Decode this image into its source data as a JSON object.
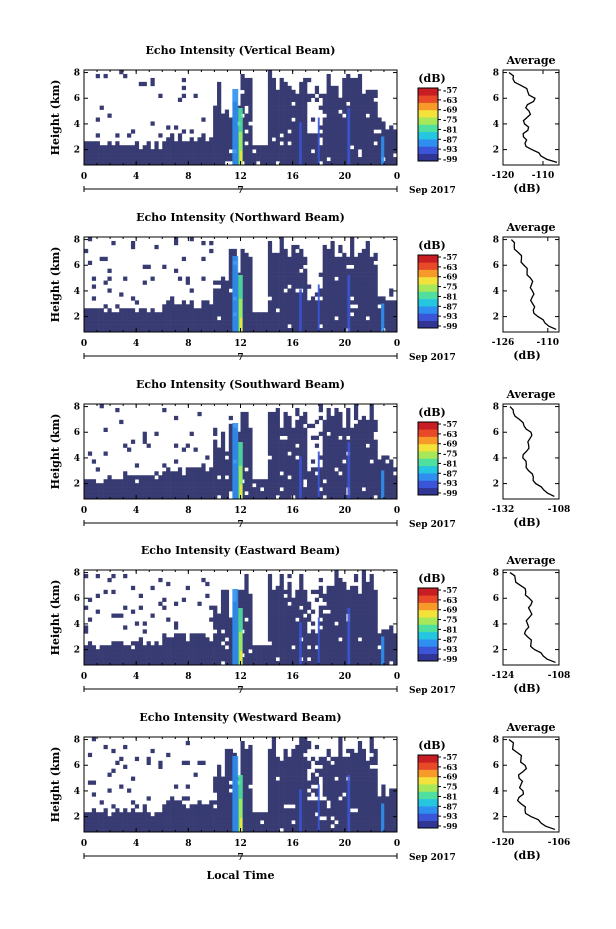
{
  "figure": {
    "xlabel": "Local Time",
    "date_label": "Sep 2017",
    "day_label": "7",
    "colorbar_unit": "(dB)",
    "colorbar_ticks": [
      "-57",
      "-63",
      "-69",
      "-75",
      "-81",
      "-87",
      "-93",
      "-99"
    ],
    "average_title": "Average",
    "average_xlabel": "(dB)",
    "colors": {
      "background_echo": "#373b72",
      "colormap": [
        "#313695",
        "#3a55d8",
        "#2f8ff0",
        "#25c6e0",
        "#4fe0a0",
        "#a6e85a",
        "#f2e23a",
        "#f79a2a",
        "#e84a28",
        "#c81d23"
      ]
    }
  },
  "chart_data": [
    {
      "type": "heatmap",
      "title": "Echo Intensity (Vertical Beam)",
      "ylabel": "Height (km)",
      "x_ticks": [
        "0",
        "4",
        "8",
        "12",
        "16",
        "20",
        "0"
      ],
      "y_ticks": [
        "2",
        "4",
        "6",
        "8"
      ],
      "xlim": [
        0,
        24
      ],
      "ylim": [
        0.8,
        8.2
      ],
      "color_range_db": [
        -99,
        -57
      ],
      "average": {
        "xlim": [
          -120,
          -106
        ],
        "x_ticks": [
          "-120",
          "-110"
        ],
        "y_ticks": [
          "2",
          "4",
          "6",
          "8"
        ],
        "ylim": [
          0.8,
          8.2
        ],
        "heights": [
          1.0,
          1.5,
          2.0,
          2.5,
          3.0,
          3.5,
          4.0,
          4.5,
          5.0,
          5.5,
          6.0,
          6.5,
          7.0,
          7.5,
          8.0
        ],
        "values": [
          -106.5,
          -110.5,
          -112.8,
          -114.5,
          -114.9,
          -113.8,
          -114.6,
          -114.0,
          -113.5,
          -113.9,
          -112.0,
          -113.8,
          -115.5,
          -117.5,
          -118.5
        ]
      }
    },
    {
      "type": "heatmap",
      "title": "Echo Intensity (Northward Beam)",
      "ylabel": "Height (km)",
      "x_ticks": [
        "0",
        "4",
        "8",
        "12",
        "16",
        "20",
        "0"
      ],
      "y_ticks": [
        "2",
        "4",
        "6",
        "8"
      ],
      "xlim": [
        0,
        24
      ],
      "ylim": [
        0.8,
        8.2
      ],
      "color_range_db": [
        -99,
        -57
      ],
      "average": {
        "xlim": [
          -126,
          -106
        ],
        "x_ticks": [
          "-126",
          "-110"
        ],
        "y_ticks": [
          "2",
          "4",
          "6",
          "8"
        ],
        "ylim": [
          0.8,
          8.2
        ],
        "heights": [
          1.0,
          1.5,
          2.0,
          2.5,
          3.0,
          3.5,
          4.0,
          4.5,
          5.0,
          5.5,
          6.0,
          6.5,
          7.0,
          7.5,
          8.0
        ],
        "values": [
          -107.0,
          -111.0,
          -113.5,
          -115.2,
          -115.4,
          -115.6,
          -115.5,
          -115.8,
          -116.2,
          -117.4,
          -118.5,
          -119.4,
          -120.6,
          -122.0,
          -123.0
        ]
      }
    },
    {
      "type": "heatmap",
      "title": "Echo Intensity (Southward Beam)",
      "ylabel": "Height (km)",
      "x_ticks": [
        "0",
        "4",
        "8",
        "12",
        "16",
        "20",
        "0"
      ],
      "y_ticks": [
        "2",
        "4",
        "6",
        "8"
      ],
      "xlim": [
        0,
        24
      ],
      "ylim": [
        0.8,
        8.2
      ],
      "color_range_db": [
        -99,
        -57
      ],
      "average": {
        "xlim": [
          -132,
          -108
        ],
        "x_ticks": [
          "-132",
          "-108"
        ],
        "y_ticks": [
          "2",
          "4",
          "6",
          "8"
        ],
        "ylim": [
          0.8,
          8.2
        ],
        "heights": [
          1.0,
          1.5,
          2.0,
          2.5,
          3.0,
          3.5,
          4.0,
          4.5,
          5.0,
          5.5,
          6.0,
          6.5,
          7.0,
          7.5,
          8.0
        ],
        "values": [
          -110.0,
          -114.5,
          -118.0,
          -119.0,
          -121.0,
          -122.0,
          -123.5,
          -122.0,
          -121.0,
          -120.5,
          -120.0,
          -123.0,
          -125.0,
          -127.5,
          -129.0
        ]
      }
    },
    {
      "type": "heatmap",
      "title": "Echo Intensity (Eastward Beam)",
      "ylabel": "Height (km)",
      "x_ticks": [
        "0",
        "4",
        "8",
        "12",
        "16",
        "20",
        "0"
      ],
      "y_ticks": [
        "2",
        "4",
        "6",
        "8"
      ],
      "xlim": [
        0,
        24
      ],
      "ylim": [
        0.8,
        8.2
      ],
      "color_range_db": [
        -99,
        -57
      ],
      "average": {
        "xlim": [
          -124,
          -108
        ],
        "x_ticks": [
          "-124",
          "-108"
        ],
        "y_ticks": [
          "2",
          "4",
          "6",
          "8"
        ],
        "ylim": [
          0.8,
          8.2
        ],
        "heights": [
          1.0,
          1.5,
          2.0,
          2.5,
          3.0,
          3.5,
          4.0,
          4.5,
          5.0,
          5.5,
          6.0,
          6.5,
          7.0,
          7.5,
          8.0
        ],
        "values": [
          -109.0,
          -112.5,
          -115.0,
          -116.0,
          -117.0,
          -117.5,
          -117.0,
          -116.5,
          -116.2,
          -116.0,
          -116.5,
          -117.5,
          -119.0,
          -120.5,
          -122.0
        ]
      }
    },
    {
      "type": "heatmap",
      "title": "Echo Intensity (Westward Beam)",
      "ylabel": "Height (km)",
      "x_ticks": [
        "0",
        "4",
        "8",
        "12",
        "16",
        "20",
        "0"
      ],
      "y_ticks": [
        "2",
        "4",
        "6",
        "8"
      ],
      "xlim": [
        0,
        24
      ],
      "ylim": [
        0.8,
        8.2
      ],
      "color_range_db": [
        -99,
        -57
      ],
      "average": {
        "xlim": [
          -120,
          -106
        ],
        "x_ticks": [
          "-120",
          "-106"
        ],
        "y_ticks": [
          "2",
          "4",
          "6",
          "8"
        ],
        "ylim": [
          0.8,
          8.2
        ],
        "heights": [
          1.0,
          1.5,
          2.0,
          2.5,
          3.0,
          3.5,
          4.0,
          4.5,
          5.0,
          5.5,
          6.0,
          6.5,
          7.0,
          7.5,
          8.0
        ],
        "values": [
          -107.0,
          -110.5,
          -113.0,
          -114.5,
          -115.5,
          -116.0,
          -115.0,
          -115.5,
          -116.0,
          -115.0,
          -114.5,
          -115.5,
          -116.5,
          -117.5,
          -118.5
        ]
      }
    }
  ]
}
